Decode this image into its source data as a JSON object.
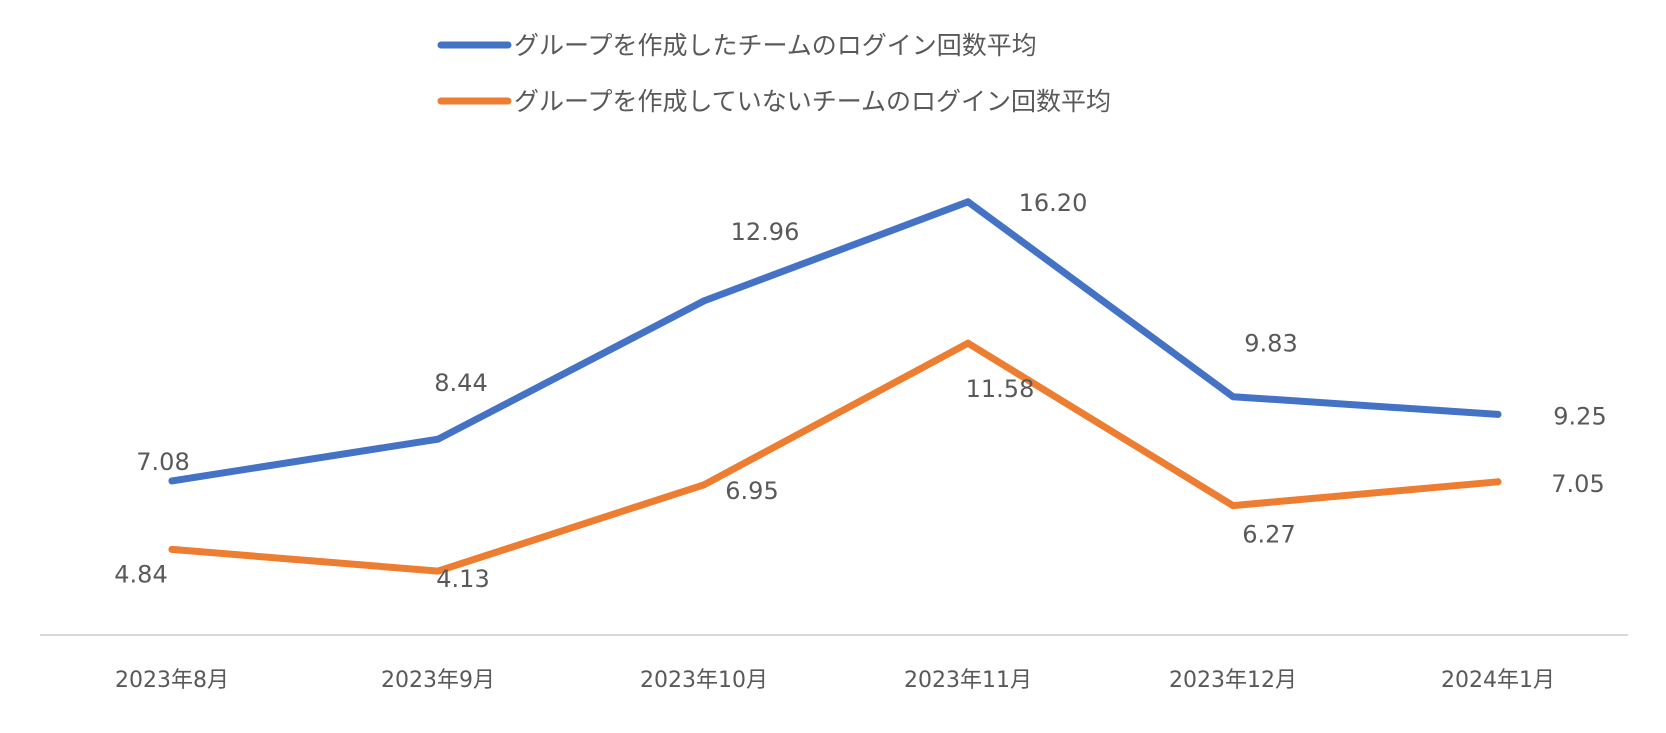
{
  "chart_data": {
    "type": "line",
    "categories": [
      "2023年8月",
      "2023年9月",
      "2023年10月",
      "2023年11月",
      "2023年12月",
      "2024年1月"
    ],
    "series": [
      {
        "name": "グループを作成したチームのログイン回数平均",
        "color": "#4472C4",
        "values": [
          7.08,
          8.44,
          12.96,
          16.2,
          9.83,
          9.25
        ],
        "labels": [
          "7.08",
          "8.44",
          "12.96",
          "16.20",
          "9.83",
          "9.25"
        ]
      },
      {
        "name": "グループを作成していないチームのログイン回数平均",
        "color": "#ED7D31",
        "values": [
          4.84,
          4.13,
          6.95,
          11.58,
          6.27,
          7.05
        ],
        "labels": [
          "4.84",
          "4.13",
          "6.95",
          "11.58",
          "6.27",
          "7.05"
        ]
      }
    ],
    "legend_position": "top",
    "grid": false,
    "axis_line_color": "#D9D9D9"
  }
}
